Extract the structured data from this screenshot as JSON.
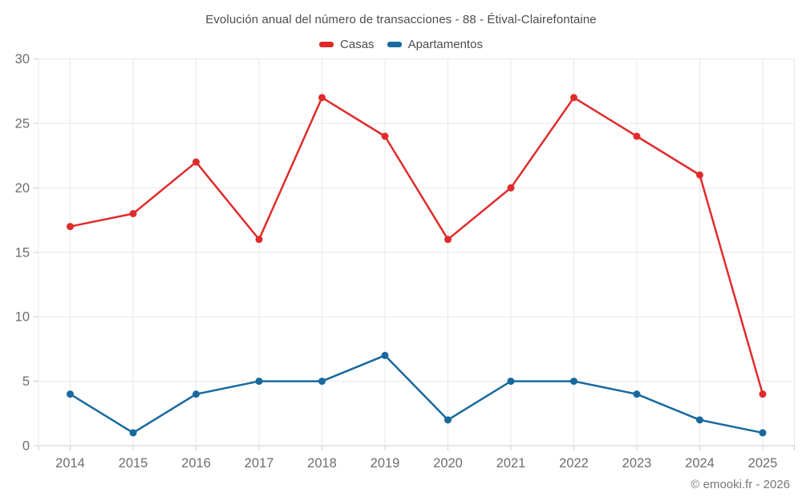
{
  "title": "Evolución anual del número de transacciones - 88 - Étival-Clairefontaine",
  "footer": "© emooki.fr - 2026",
  "colors": {
    "background": "#ffffff",
    "title_text": "#4d4d4d",
    "axis_tick_text": "#6e6e6e",
    "gridline": "#e8e8e8",
    "axis_line": "#cccccc",
    "footer_text": "#787878"
  },
  "chart_data": {
    "type": "line",
    "title": "Evolución anual del número de transacciones - 88 - Étival-Clairefontaine",
    "categories": [
      "2014",
      "2015",
      "2016",
      "2017",
      "2018",
      "2019",
      "2020",
      "2021",
      "2022",
      "2023",
      "2024",
      "2025"
    ],
    "series": [
      {
        "name": "Casas",
        "color": "#e02b2b",
        "values": [
          17,
          18,
          22,
          16,
          27,
          24,
          16,
          20,
          27,
          24,
          21,
          4
        ]
      },
      {
        "name": "Apartamentos",
        "color": "#17699e",
        "values": [
          4,
          1,
          4,
          5,
          5,
          7,
          2,
          5,
          5,
          4,
          2,
          1
        ]
      }
    ],
    "xlabel": "",
    "ylabel": "",
    "ylim": [
      0,
      30
    ],
    "ytick_step": 5,
    "grid": true,
    "legend_position": "top",
    "marker": "circle"
  }
}
